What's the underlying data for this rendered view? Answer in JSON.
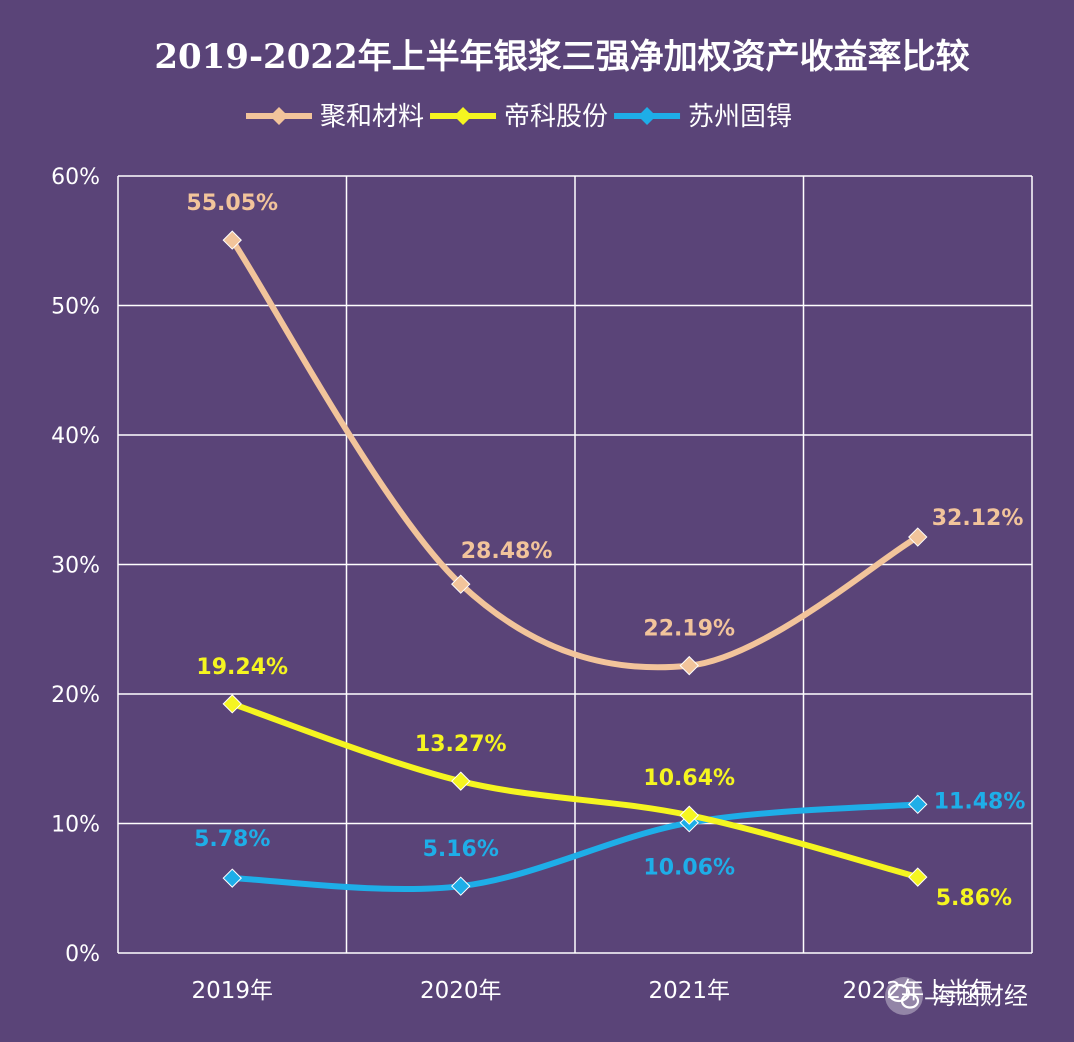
{
  "chart_data": {
    "type": "line",
    "title": "2019-2022年上半年银浆三强净加权资产收益率比较",
    "categories": [
      "2019年",
      "2020年",
      "2021年",
      "2022年上半年"
    ],
    "y_ticks": [
      "0%",
      "10%",
      "20%",
      "30%",
      "40%",
      "50%",
      "60%"
    ],
    "ylim": [
      0,
      60
    ],
    "grid": true,
    "legend_position": "top",
    "series": [
      {
        "name": "聚和材料",
        "color": "#f2c49b",
        "values": [
          55.05,
          28.48,
          22.19,
          32.12
        ],
        "labels": [
          "55.05%",
          "28.48%",
          "22.19%",
          "32.12%"
        ]
      },
      {
        "name": "帝科股份",
        "color": "#f5f520",
        "values": [
          19.24,
          13.27,
          10.64,
          5.86
        ],
        "labels": [
          "19.24%",
          "13.27%",
          "10.64%",
          "5.86%"
        ]
      },
      {
        "name": "苏州固锝",
        "color": "#1eaee8",
        "values": [
          5.78,
          5.16,
          10.06,
          11.48
        ],
        "labels": [
          "5.78%",
          "5.16%",
          "10.06%",
          "11.48%"
        ]
      }
    ]
  },
  "watermark": {
    "text": "海涵财经",
    "icon": "wechat-icon"
  }
}
